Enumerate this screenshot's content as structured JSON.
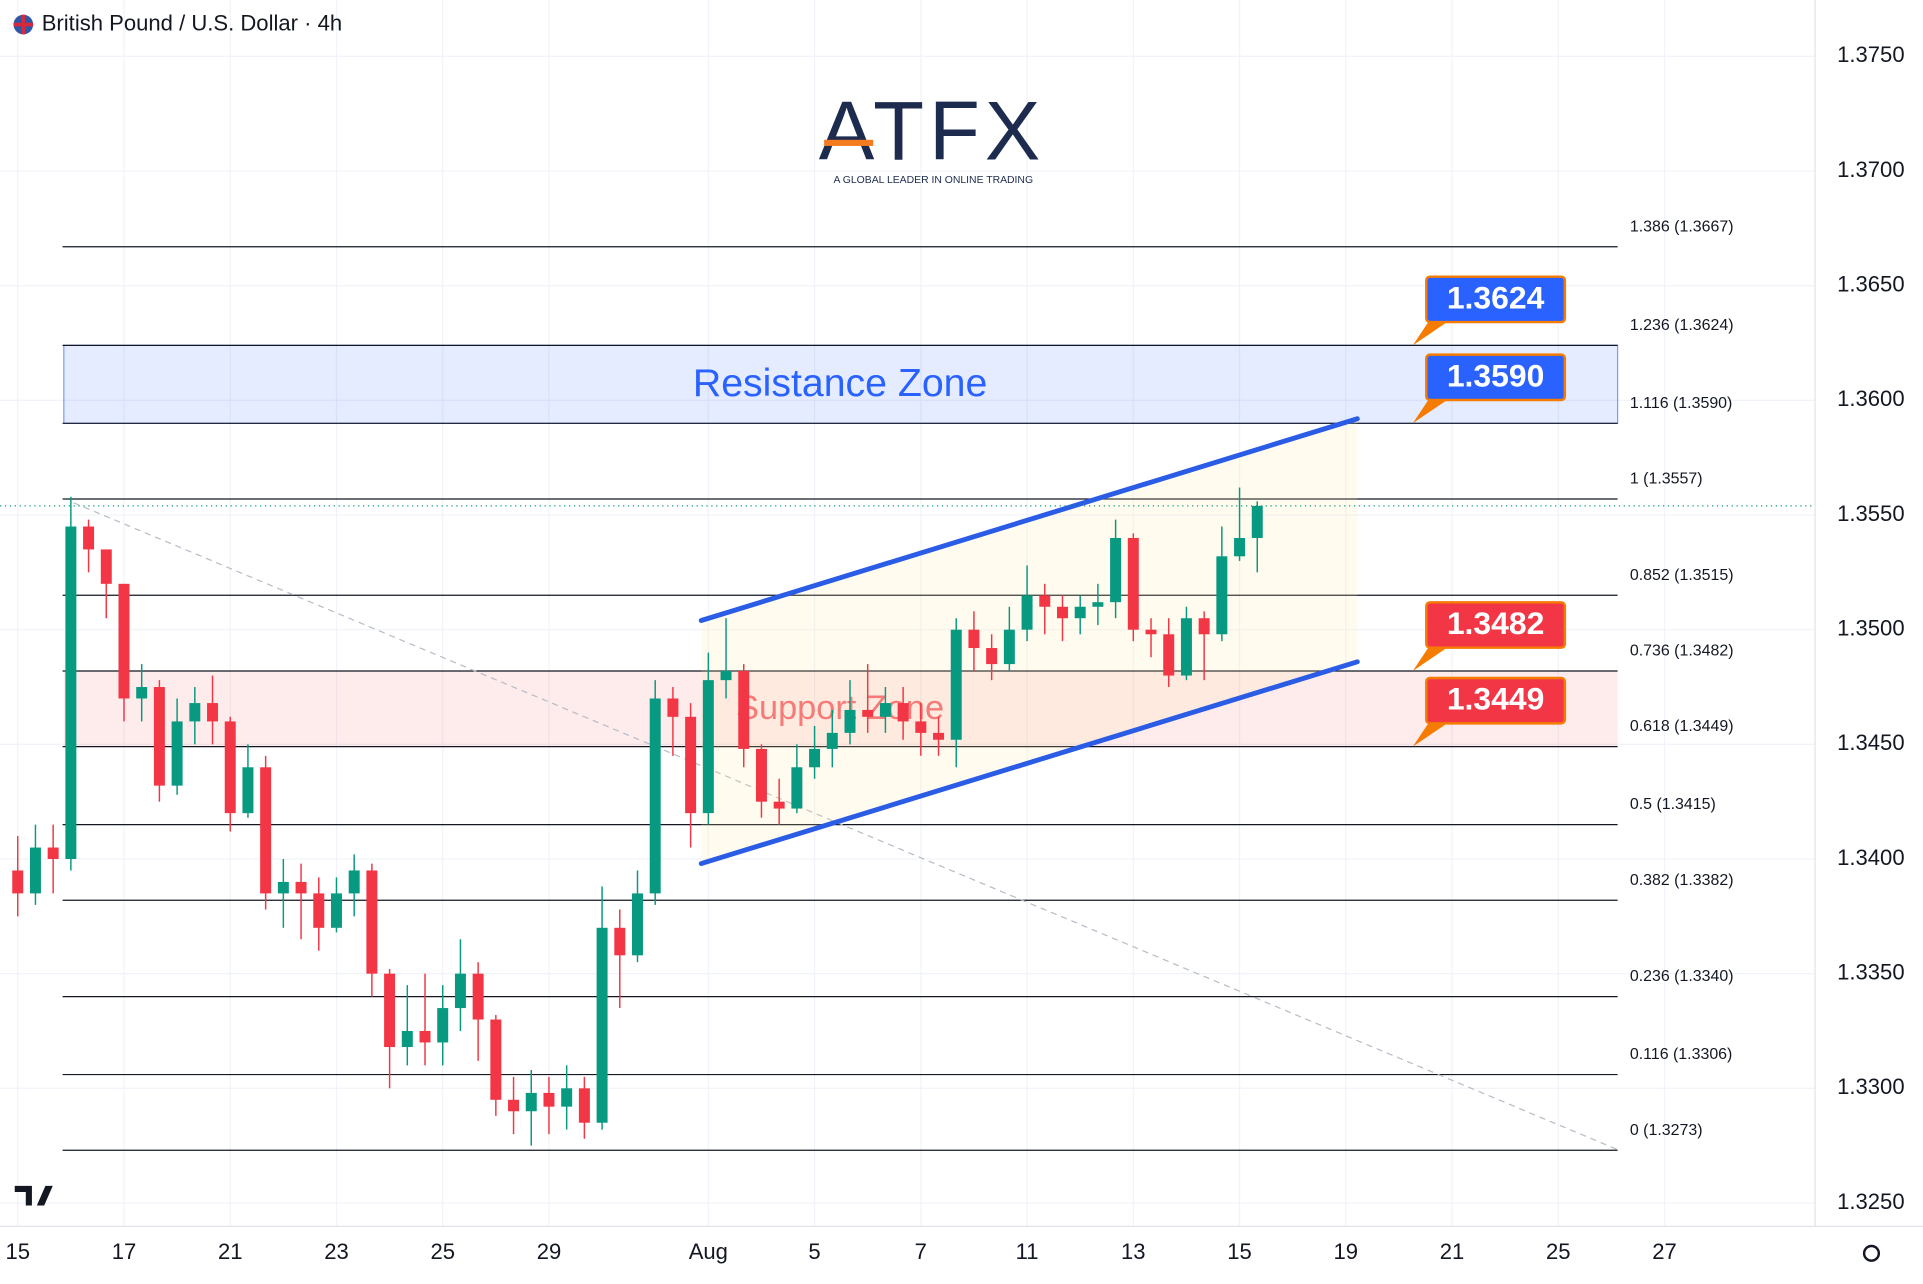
{
  "chart_data": {
    "type": "candlestick",
    "title": "British Pound / U.S. Dollar · 4h",
    "logo": {
      "text": "ATFX",
      "tagline": "A GLOBAL LEADER IN ONLINE TRADING"
    },
    "up_color": "#089981",
    "down_color": "#f23645",
    "grid": true,
    "xlim": [
      -2,
      203
    ],
    "ylim": [
      1.32398,
      1.37746
    ],
    "xticks": [
      {
        "value": 0,
        "label": "15"
      },
      {
        "value": 12,
        "label": "17"
      },
      {
        "value": 24,
        "label": "21"
      },
      {
        "value": 36,
        "label": "23"
      },
      {
        "value": 48,
        "label": "25"
      },
      {
        "value": 60,
        "label": "29"
      },
      {
        "value": 78,
        "label": "Aug"
      },
      {
        "value": 90,
        "label": "5"
      },
      {
        "value": 102,
        "label": "7"
      },
      {
        "value": 114,
        "label": "11"
      },
      {
        "value": 126,
        "label": "13"
      },
      {
        "value": 138,
        "label": "15"
      },
      {
        "value": 150,
        "label": "19"
      },
      {
        "value": 162,
        "label": "21"
      },
      {
        "value": 174,
        "label": "25"
      },
      {
        "value": 186,
        "label": "27"
      }
    ],
    "yticks": [
      {
        "value": 1.325,
        "label": "1.3250"
      },
      {
        "value": 1.33,
        "label": "1.3300"
      },
      {
        "value": 1.335,
        "label": "1.3350"
      },
      {
        "value": 1.34,
        "label": "1.3400"
      },
      {
        "value": 1.345,
        "label": "1.3450"
      },
      {
        "value": 1.35,
        "label": "1.3500"
      },
      {
        "value": 1.355,
        "label": "1.3550"
      },
      {
        "value": 1.36,
        "label": "1.3600"
      },
      {
        "value": 1.365,
        "label": "1.3650"
      },
      {
        "value": 1.37,
        "label": "1.3700"
      },
      {
        "value": 1.375,
        "label": "1.3750"
      }
    ],
    "x": [
      0,
      2,
      4,
      6,
      8,
      10,
      12,
      14,
      16,
      18,
      20,
      22,
      24,
      26,
      28,
      30,
      32,
      34,
      36,
      38,
      40,
      42,
      44,
      46,
      48,
      50,
      52,
      54,
      56,
      58,
      60,
      62,
      64,
      66,
      68,
      70,
      72,
      74,
      76,
      78,
      80,
      82,
      84,
      86,
      88,
      90,
      92,
      94,
      96,
      98,
      100,
      102,
      104,
      106,
      108,
      110,
      112,
      114,
      116,
      118,
      120,
      122,
      124,
      126,
      128,
      130,
      132,
      134,
      136,
      138,
      140
    ],
    "open": [
      1.3395,
      1.3385,
      1.3405,
      1.34,
      1.3545,
      1.3535,
      1.352,
      1.347,
      1.3475,
      1.3432,
      1.346,
      1.3468,
      1.346,
      1.342,
      1.344,
      1.3385,
      1.339,
      1.3385,
      1.337,
      1.3385,
      1.3395,
      1.335,
      1.3318,
      1.3325,
      1.332,
      1.3335,
      1.335,
      1.333,
      1.3295,
      1.329,
      1.3298,
      1.3292,
      1.33,
      1.3285,
      1.337,
      1.3358,
      1.3385,
      1.347,
      1.3462,
      1.342,
      1.3478,
      1.3482,
      1.3448,
      1.3425,
      1.3422,
      1.344,
      1.3448,
      1.3455,
      1.3465,
      1.3462,
      1.3468,
      1.346,
      1.3455,
      1.3452,
      1.35,
      1.3492,
      1.3485,
      1.35,
      1.3515,
      1.351,
      1.3505,
      1.351,
      1.3512,
      1.354,
      1.35,
      1.3498,
      1.348,
      1.3505,
      1.3498,
      1.3532,
      1.354
    ],
    "high": [
      1.341,
      1.3415,
      1.3415,
      1.3558,
      1.3548,
      1.3535,
      1.352,
      1.3485,
      1.3478,
      1.347,
      1.3475,
      1.348,
      1.3462,
      1.345,
      1.3445,
      1.34,
      1.3398,
      1.3392,
      1.3392,
      1.3402,
      1.3398,
      1.3352,
      1.3345,
      1.335,
      1.3345,
      1.3365,
      1.3355,
      1.3332,
      1.3305,
      1.3308,
      1.3305,
      1.331,
      1.3305,
      1.3388,
      1.3378,
      1.3395,
      1.3478,
      1.3475,
      1.3468,
      1.349,
      1.3505,
      1.3485,
      1.345,
      1.3435,
      1.345,
      1.3458,
      1.3465,
      1.3478,
      1.3485,
      1.3475,
      1.3475,
      1.3468,
      1.3462,
      1.3505,
      1.3508,
      1.3498,
      1.351,
      1.3528,
      1.352,
      1.3515,
      1.3515,
      1.352,
      1.3548,
      1.3542,
      1.3505,
      1.3505,
      1.351,
      1.3508,
      1.3545,
      1.3562,
      1.3556
    ],
    "low": [
      1.3375,
      1.338,
      1.3385,
      1.3395,
      1.3525,
      1.3505,
      1.346,
      1.346,
      1.3425,
      1.3428,
      1.345,
      1.345,
      1.3412,
      1.3418,
      1.3378,
      1.337,
      1.3365,
      1.336,
      1.3368,
      1.3375,
      1.334,
      1.33,
      1.331,
      1.331,
      1.331,
      1.3325,
      1.3312,
      1.3288,
      1.328,
      1.3275,
      1.328,
      1.3282,
      1.3278,
      1.3282,
      1.3335,
      1.3355,
      1.338,
      1.3445,
      1.3405,
      1.3415,
      1.347,
      1.344,
      1.3418,
      1.3415,
      1.342,
      1.3435,
      1.344,
      1.345,
      1.3455,
      1.3455,
      1.3452,
      1.3445,
      1.3445,
      1.344,
      1.3482,
      1.3478,
      1.3482,
      1.3495,
      1.3498,
      1.3495,
      1.3498,
      1.3502,
      1.3505,
      1.3495,
      1.3488,
      1.3475,
      1.3478,
      1.3478,
      1.3495,
      1.353,
      1.3525
    ],
    "close": [
      1.3385,
      1.3405,
      1.34,
      1.3545,
      1.3535,
      1.352,
      1.347,
      1.3475,
      1.3432,
      1.346,
      1.3468,
      1.346,
      1.342,
      1.344,
      1.3385,
      1.339,
      1.3385,
      1.337,
      1.3385,
      1.3395,
      1.335,
      1.3318,
      1.3325,
      1.332,
      1.3335,
      1.335,
      1.333,
      1.3295,
      1.329,
      1.3298,
      1.3292,
      1.33,
      1.3285,
      1.337,
      1.3358,
      1.3385,
      1.347,
      1.3462,
      1.342,
      1.3478,
      1.3482,
      1.3448,
      1.3425,
      1.3422,
      1.344,
      1.3448,
      1.3455,
      1.3465,
      1.3462,
      1.3468,
      1.346,
      1.3455,
      1.3452,
      1.35,
      1.3492,
      1.3485,
      1.35,
      1.3515,
      1.351,
      1.3505,
      1.351,
      1.3512,
      1.354,
      1.35,
      1.3498,
      1.348,
      1.3505,
      1.3498,
      1.3532,
      1.354,
      1.3554
    ],
    "fib_levels": [
      {
        "label": "1.386 (1.3667)",
        "price": 1.3667
      },
      {
        "label": "1.236 (1.3624)",
        "price": 1.3624
      },
      {
        "label": "1.116 (1.3590)",
        "price": 1.359
      },
      {
        "label": "1 (1.3557)",
        "price": 1.3557
      },
      {
        "label": "0.852 (1.3515)",
        "price": 1.3515
      },
      {
        "label": "0.736 (1.3482)",
        "price": 1.3482
      },
      {
        "label": "0.618 (1.3449)",
        "price": 1.3449
      },
      {
        "label": "0.5 (1.3415)",
        "price": 1.3415
      },
      {
        "label": "0.382 (1.3382)",
        "price": 1.3382
      },
      {
        "label": "0.236 (1.3340)",
        "price": 1.334
      },
      {
        "label": "0.116 (1.3306)",
        "price": 1.3306
      },
      {
        "label": "0 (1.3273)",
        "price": 1.3273
      }
    ],
    "zones": [
      {
        "name": "Resistance Zone",
        "low": 1.359,
        "high": 1.3624,
        "color": "#2962ff"
      },
      {
        "name": "Support Zone",
        "low": 1.3449,
        "high": 1.3482,
        "color": "#f23645"
      }
    ],
    "channel": {
      "x": [
        77.2,
        151.3
      ],
      "upper": [
        1.3504,
        1.3592
      ],
      "lower": [
        1.3398,
        1.3486
      ],
      "color": "#2a5ce6"
    },
    "callouts": [
      {
        "value": 1.3624,
        "label": "1.3624",
        "color": "#2962ff"
      },
      {
        "value": 1.359,
        "label": "1.3590",
        "color": "#2962ff"
      },
      {
        "value": 1.3482,
        "label": "1.3482",
        "color": "#f23645"
      },
      {
        "value": 1.3449,
        "label": "1.3449",
        "color": "#f23645"
      }
    ]
  }
}
